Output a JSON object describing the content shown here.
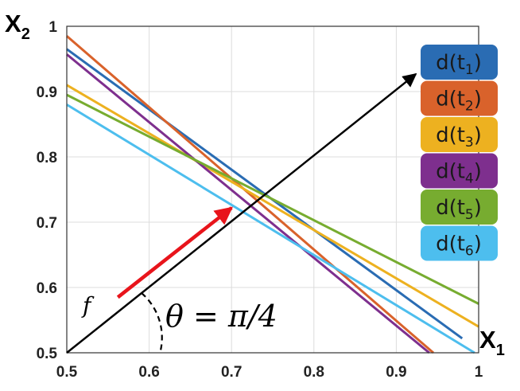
{
  "chart_data": {
    "type": "line",
    "xlim": [
      0.5,
      1
    ],
    "ylim": [
      0.5,
      1
    ],
    "x_ticks": [
      "0.5",
      "0.6",
      "0.7",
      "0.8",
      "0.9",
      "1"
    ],
    "y_ticks": [
      "0.5",
      "0.6",
      "0.7",
      "0.8",
      "0.9",
      "1"
    ],
    "xlabel": "X",
    "xlabel_sub": "1",
    "ylabel": "X",
    "ylabel_sub": "2",
    "grid": true,
    "legend_position": "right",
    "series": [
      {
        "label_main": "d(t",
        "label_sub": "1",
        "label_end": ")",
        "color": "#2a6cb3",
        "x": [
          0.5,
          0.98
        ],
        "y": [
          0.965,
          0.522
        ]
      },
      {
        "label_main": "d(t",
        "label_sub": "2",
        "label_end": ")",
        "color": "#d9622b",
        "x": [
          0.5,
          0.945
        ],
        "y": [
          0.985,
          0.5
        ]
      },
      {
        "label_main": "d(t",
        "label_sub": "3",
        "label_end": ")",
        "color": "#edb120",
        "x": [
          0.5,
          1.0
        ],
        "y": [
          0.91,
          0.54
        ]
      },
      {
        "label_main": "d(t",
        "label_sub": "4",
        "label_end": ")",
        "color": "#7e2f8e",
        "x": [
          0.5,
          0.94
        ],
        "y": [
          0.957,
          0.5
        ]
      },
      {
        "label_main": "d(t",
        "label_sub": "5",
        "label_end": ")",
        "color": "#77ac30",
        "x": [
          0.5,
          1.0
        ],
        "y": [
          0.895,
          0.575
        ]
      },
      {
        "label_main": "d(t",
        "label_sub": "6",
        "label_end": ")",
        "color": "#4dbeee",
        "x": [
          0.5,
          0.995
        ],
        "y": [
          0.88,
          0.5
        ]
      }
    ],
    "annotations": {
      "direction_arrow": {
        "x": [
          0.5,
          0.95
        ],
        "y": [
          0.5,
          0.9
        ],
        "color": "#000000"
      },
      "red_arrow": {
        "x": [
          0.562,
          0.7
        ],
        "y": [
          0.585,
          0.722
        ],
        "color": "#e8141b"
      },
      "angle_label": "θ = π/4",
      "line_label": "f"
    }
  }
}
